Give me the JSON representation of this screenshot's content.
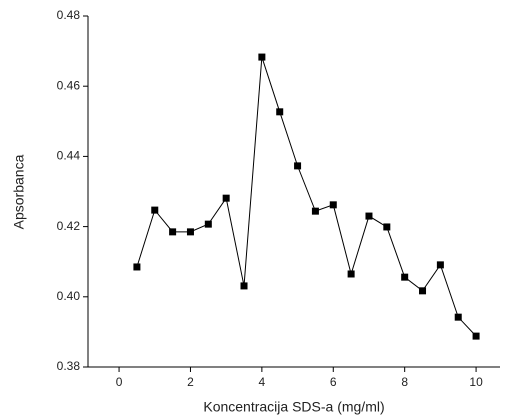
{
  "chart_data": {
    "type": "line",
    "x_label": "Koncentracija SDS-a (mg/ml)",
    "y_label": "Apsorbanca",
    "x": [
      0.5,
      1,
      1.5,
      2,
      2.5,
      3,
      3.5,
      4,
      4.5,
      5,
      5.5,
      6,
      6.5,
      7,
      7.5,
      8,
      8.5,
      9,
      9.5,
      10
    ],
    "values": [
      0.4085,
      0.4247,
      0.4185,
      0.4185,
      0.4207,
      0.4281,
      0.4031,
      0.4683,
      0.4527,
      0.4373,
      0.4244,
      0.4262,
      0.4065,
      0.423,
      0.4199,
      0.4056,
      0.4017,
      0.4091,
      0.3942,
      0.3888
    ],
    "color": "#000000",
    "marker": "square",
    "xlim": [
      -0.87,
      10.67
    ],
    "xticks": [
      0,
      2,
      4,
      6,
      8,
      10
    ],
    "ylim": [
      0.38,
      0.48
    ],
    "yticks": [
      {
        "value": 0.38,
        "label": "0.38"
      },
      {
        "value": 0.4,
        "label": "0.40"
      },
      {
        "value": 0.42,
        "label": "0.42"
      },
      {
        "value": 0.44,
        "label": "0.44"
      },
      {
        "value": 0.46,
        "label": "0.46"
      },
      {
        "value": 0.48,
        "label": "0.48"
      }
    ]
  }
}
